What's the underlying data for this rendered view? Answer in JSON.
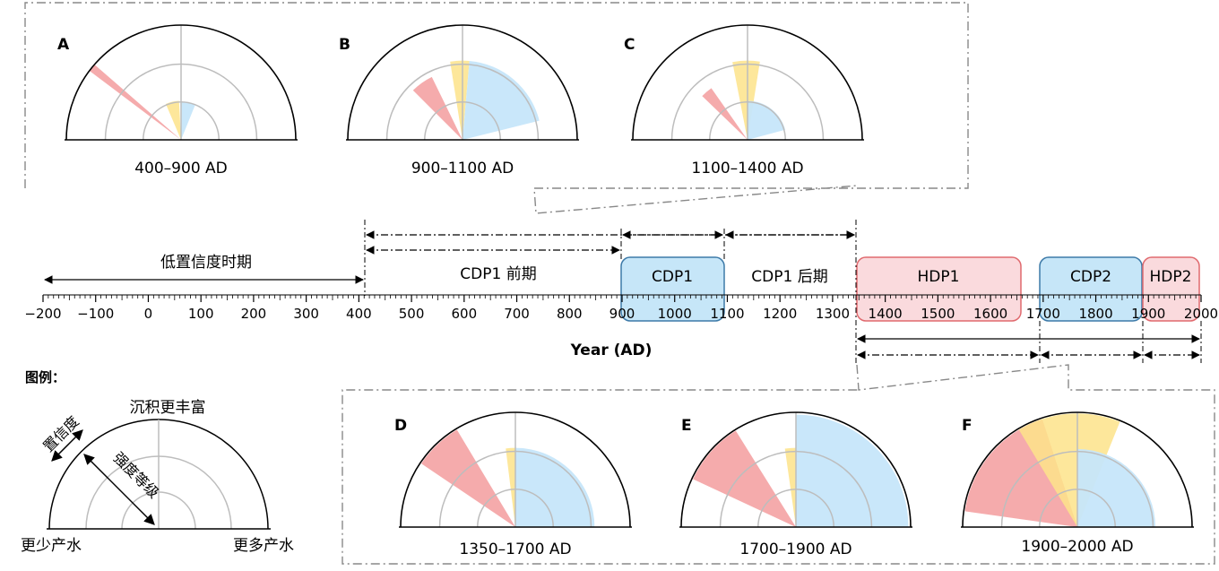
{
  "axis": {
    "title": "Year (AD)",
    "min": -200,
    "max": 2000,
    "tick_labels": [
      -200,
      -100,
      0,
      100,
      200,
      300,
      400,
      500,
      600,
      700,
      800,
      900,
      1000,
      1100,
      1200,
      1300,
      1400,
      1500,
      1600,
      1700,
      1800,
      1900,
      2000
    ]
  },
  "periods": {
    "low_confidence": {
      "label": "低置信度时期",
      "start": -200,
      "end": 400
    },
    "cdp1_early": {
      "label": "CDP1 前期",
      "start": 400,
      "end": 900
    },
    "cdp1": {
      "label": "CDP1",
      "start": 900,
      "end": 1100
    },
    "cdp1_late": {
      "label": "CDP1 后期",
      "start": 1100,
      "end": 1400
    },
    "hdp1": {
      "label": "HDP1",
      "start": 1350,
      "end": 1700
    },
    "cdp2": {
      "label": "CDP2",
      "start": 1700,
      "end": 1900
    },
    "hdp2": {
      "label": "HDP2",
      "start": 1900,
      "end": 2000
    }
  },
  "panels": [
    {
      "letter": "A",
      "caption": "400–900 AD"
    },
    {
      "letter": "B",
      "caption": "900–1100 AD"
    },
    {
      "letter": "C",
      "caption": "1100–1400 AD"
    },
    {
      "letter": "D",
      "caption": "1350–1700 AD"
    },
    {
      "letter": "E",
      "caption": "1700–1900 AD"
    },
    {
      "letter": "F",
      "caption": "1900–2000 AD"
    }
  ],
  "legend": {
    "title": "图例：",
    "top": "沉积更丰富",
    "left_bottom": "更少产水",
    "right_bottom": "更多产水",
    "confidence": "置信度",
    "intensity": "强度等级"
  },
  "colors": {
    "red": "#f4a6a8",
    "yellow": "#fde38a",
    "blue": "#c6e6fa",
    "cdp_box_fill": "#c6e6f8",
    "cdp_box_stroke": "#3d7aa8",
    "hdp_box_fill": "#fadadd",
    "hdp_box_stroke": "#e06a6f"
  }
}
